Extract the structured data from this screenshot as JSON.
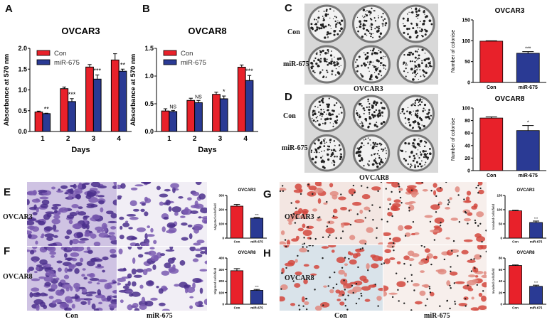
{
  "panel_labels": {
    "A": "A",
    "B": "B",
    "C": "C",
    "D": "D",
    "E": "E",
    "F": "F",
    "G": "G",
    "H": "H"
  },
  "photos": {
    "C": {
      "row_labels": [
        "Con",
        "miR-675"
      ],
      "caption": "OVCAR3"
    },
    "D": {
      "row_labels": [
        "Con",
        "miR-675"
      ],
      "caption": "OVCAR8"
    },
    "EF": {
      "row_labels": [
        "OVCAR3",
        "OVCAR8"
      ],
      "col_labels": [
        "Con",
        "miR-675"
      ]
    },
    "GH": {
      "row_labels": [
        "OVCAR3",
        "OVCAR8"
      ],
      "col_labels": [
        "Con",
        "miR-675"
      ]
    }
  },
  "colors": {
    "con": "#e8212a",
    "mir": "#2a3a94",
    "purple_stain": "#5a3f9a",
    "red_stain": "#c9302c"
  },
  "chart_data": [
    {
      "id": "A",
      "type": "bar",
      "title": "OVCAR3",
      "xlabel": "Days",
      "ylabel": "Absorbance at 570 nm",
      "categories": [
        "1",
        "2",
        "3",
        "4"
      ],
      "ylim": [
        0,
        2.0
      ],
      "yticks": [
        "0.0",
        "0.5",
        "1.0",
        "1.5",
        "2.0"
      ],
      "legend": "top-left",
      "series": [
        {
          "name": "Con",
          "values": [
            0.47,
            1.03,
            1.55,
            1.72
          ],
          "errors": [
            0.02,
            0.04,
            0.06,
            0.15
          ]
        },
        {
          "name": "miR-675",
          "values": [
            0.43,
            0.72,
            1.26,
            1.45
          ],
          "errors": [
            0.01,
            0.07,
            0.1,
            0.05
          ]
        }
      ],
      "annotations": [
        "**",
        "***",
        "***",
        "**"
      ]
    },
    {
      "id": "B",
      "type": "bar",
      "title": "OVCAR8",
      "xlabel": "Days",
      "ylabel": "Absorbance at 570 nm",
      "categories": [
        "1",
        "2",
        "3",
        "4"
      ],
      "ylim": [
        0,
        1.5
      ],
      "yticks": [
        "0.0",
        "0.5",
        "1.0",
        "1.5"
      ],
      "legend": "top-left",
      "series": [
        {
          "name": "Con",
          "values": [
            0.37,
            0.56,
            0.67,
            1.16
          ],
          "errors": [
            0.04,
            0.04,
            0.04,
            0.04
          ]
        },
        {
          "name": "miR-675",
          "values": [
            0.36,
            0.52,
            0.59,
            0.92
          ],
          "errors": [
            0.02,
            0.04,
            0.05,
            0.09
          ]
        }
      ],
      "annotations": [
        "NS",
        "NS",
        "*",
        "***"
      ]
    },
    {
      "id": "C",
      "type": "bar",
      "title": "OVCAR3",
      "ylabel": "Number of colonise",
      "categories": [
        "Con",
        "miR-675"
      ],
      "ylim": [
        0,
        150
      ],
      "yticks": [
        "0",
        "50",
        "100",
        "150"
      ],
      "values": [
        99,
        70
      ],
      "errors": [
        1,
        4
      ],
      "annotations": [
        "",
        "***"
      ]
    },
    {
      "id": "D",
      "type": "bar",
      "title": "OVCAR8",
      "ylabel": "Number of colonise",
      "categories": [
        "Con",
        "miR-675"
      ],
      "ylim": [
        0,
        100
      ],
      "yticks": [
        "0",
        "20",
        "40",
        "60",
        "80",
        "100"
      ],
      "values": [
        84,
        64
      ],
      "errors": [
        2,
        8
      ],
      "annotations": [
        "",
        "*"
      ]
    },
    {
      "id": "E",
      "type": "bar",
      "title": "OVCAR3",
      "ylabel": "Migrated cells/field",
      "categories": [
        "Con",
        "miR-675"
      ],
      "ylim": [
        0,
        300
      ],
      "yticks": [
        "0",
        "100",
        "200",
        "300"
      ],
      "values": [
        225,
        140
      ],
      "errors": [
        12,
        5
      ],
      "annotations": [
        "",
        "***"
      ]
    },
    {
      "id": "F",
      "type": "bar",
      "title": "OVCAR8",
      "ylabel": "Migrated cells/field",
      "categories": [
        "Con",
        "miR-675"
      ],
      "ylim": [
        0,
        400
      ],
      "yticks": [
        "0",
        "100",
        "200",
        "300",
        "400"
      ],
      "values": [
        290,
        120
      ],
      "errors": [
        18,
        8
      ],
      "annotations": [
        "",
        "***"
      ]
    },
    {
      "id": "G",
      "type": "bar",
      "title": "OVCAR3",
      "ylabel": "Invaded cells/field",
      "categories": [
        "Con",
        "miR-675"
      ],
      "ylim": [
        0,
        150
      ],
      "yticks": [
        "0",
        "50",
        "100",
        "150"
      ],
      "values": [
        96,
        55
      ],
      "errors": [
        2,
        5
      ],
      "annotations": [
        "",
        "***"
      ]
    },
    {
      "id": "H",
      "type": "bar",
      "title": "OVCAR8",
      "ylabel": "Invaded cells/field",
      "categories": [
        "Con",
        "miR-675"
      ],
      "ylim": [
        0,
        80
      ],
      "yticks": [
        "0",
        "20",
        "40",
        "60",
        "80"
      ],
      "values": [
        67,
        31
      ],
      "errors": [
        1,
        2
      ],
      "annotations": [
        "",
        "***"
      ]
    }
  ]
}
